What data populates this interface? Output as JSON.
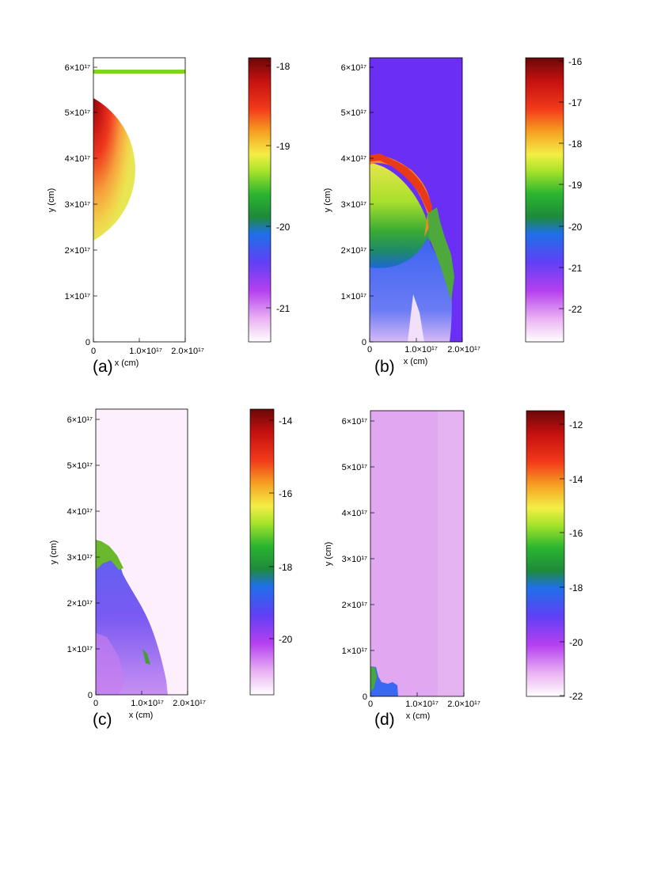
{
  "figure": {
    "axis_labels": {
      "x": "x (cm)",
      "y": "y (cm)"
    },
    "x_ticks": [
      "0",
      "1.0×10¹⁷",
      "2.0×10¹⁷"
    ],
    "y_ticks": [
      "0",
      "1×10¹⁷",
      "2×10¹⁷",
      "3×10¹⁷",
      "4×10¹⁷",
      "5×10¹⁷",
      "6×10¹⁷"
    ]
  },
  "chart_data": [
    {
      "type": "heatmap",
      "panel_label": "(a)",
      "xlabel": "x (cm)",
      "ylabel": "y (cm)",
      "xlim": [
        0,
        2e+17
      ],
      "ylim": [
        0,
        6.2e+17
      ],
      "colorbar": {
        "ticks": [
          "-18",
          "-19",
          "-20",
          "-21"
        ],
        "range": [
          -21.6,
          -17.9
        ]
      },
      "features": {
        "sphere_center_y": 4e+17,
        "sphere_radius": 1.75e+17,
        "top_bar_y": 5.9e+17
      }
    },
    {
      "type": "heatmap",
      "panel_label": "(b)",
      "xlabel": "x (cm)",
      "ylabel": "y (cm)",
      "xlim": [
        0,
        2e+17
      ],
      "ylim": [
        0,
        6.2e+17
      ],
      "colorbar": {
        "ticks": [
          "-16",
          "-17",
          "-18",
          "-19",
          "-20",
          "-21",
          "-22"
        ],
        "range": [
          -22.9,
          -15.9
        ]
      }
    },
    {
      "type": "heatmap",
      "panel_label": "(c)",
      "xlabel": "x (cm)",
      "ylabel": "y (cm)",
      "xlim": [
        0,
        2e+17
      ],
      "ylim": [
        0,
        6.2e+17
      ],
      "colorbar": {
        "ticks": [
          "-14",
          "-16",
          "-18",
          "-20"
        ],
        "range": [
          -21.5,
          -13.8
        ]
      }
    },
    {
      "type": "heatmap",
      "panel_label": "(d)",
      "xlabel": "x (cm)",
      "ylabel": "y (cm)",
      "xlim": [
        0,
        2e+17
      ],
      "ylim": [
        0,
        6.2e+17
      ],
      "colorbar": {
        "ticks": [
          "-12",
          "-14",
          "-16",
          "-18",
          "-20",
          "-22"
        ],
        "range": [
          -22,
          -11.5
        ]
      }
    }
  ]
}
